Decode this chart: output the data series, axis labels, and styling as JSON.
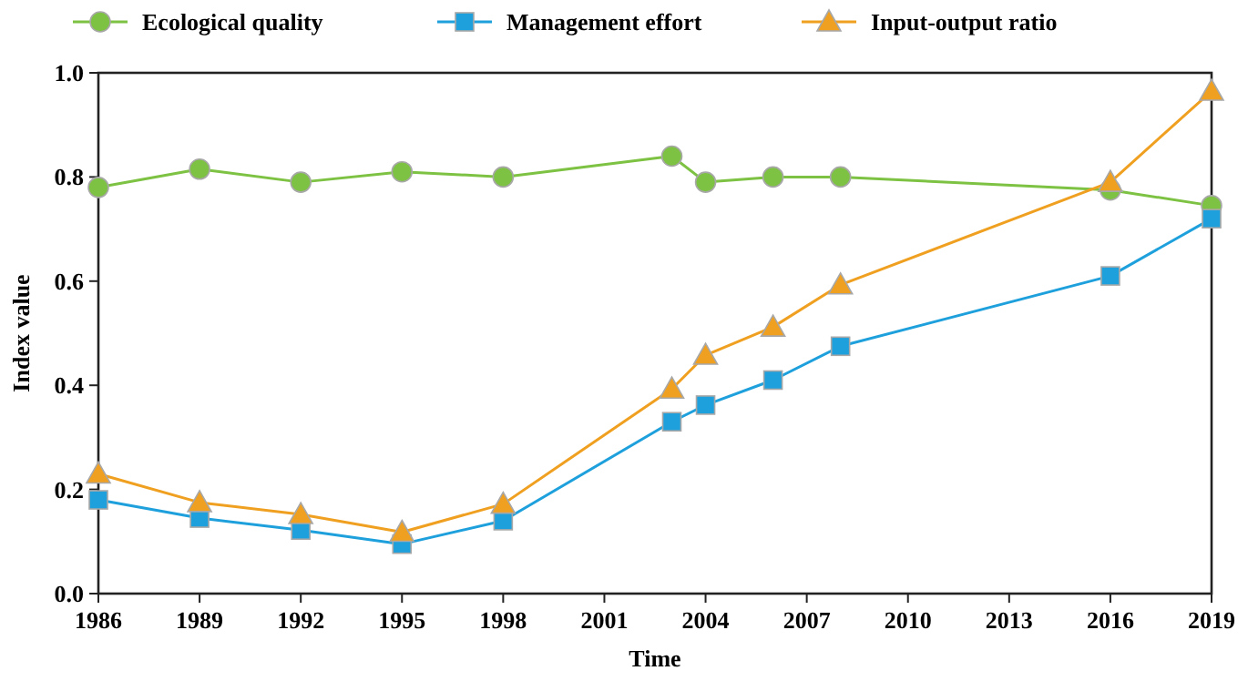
{
  "chart_data": {
    "type": "line",
    "xlabel": "Time",
    "ylabel": "Index value",
    "x": [
      1986,
      1989,
      1992,
      1995,
      1998,
      2003,
      2004,
      2006,
      2008,
      2016,
      2019
    ],
    "series": [
      {
        "name": "Ecological quality",
        "color": "#7dc242",
        "marker": "circle",
        "values": [
          0.78,
          0.815,
          0.79,
          0.81,
          0.8,
          0.84,
          0.79,
          0.8,
          0.8,
          0.775,
          0.745
        ]
      },
      {
        "name": "Management effort",
        "color": "#1ea0dc",
        "marker": "square",
        "values": [
          0.18,
          0.145,
          0.122,
          0.095,
          0.14,
          0.33,
          0.362,
          0.41,
          0.475,
          0.61,
          0.72
        ]
      },
      {
        "name": "Input-output ratio",
        "color": "#f0a020",
        "marker": "triangle",
        "values": [
          0.23,
          0.175,
          0.152,
          0.118,
          0.172,
          0.393,
          0.458,
          0.512,
          0.593,
          0.79,
          0.965
        ]
      }
    ],
    "xlim": [
      1986,
      2019
    ],
    "xticks": [
      1986,
      1989,
      1992,
      1995,
      1998,
      2001,
      2004,
      2007,
      2010,
      2013,
      2016,
      2019
    ],
    "ylim": [
      0,
      1
    ],
    "yticks": [
      {
        "value": 0,
        "label": "0.0"
      },
      {
        "value": 0.2,
        "label": "0.2"
      },
      {
        "value": 0.4,
        "label": "0.4"
      },
      {
        "value": 0.6,
        "label": "0.6"
      },
      {
        "value": 0.8,
        "label": "0.8"
      },
      {
        "value": 1,
        "label": "1.0"
      }
    ],
    "grid": false,
    "legend": "top",
    "line_style": "solid"
  }
}
